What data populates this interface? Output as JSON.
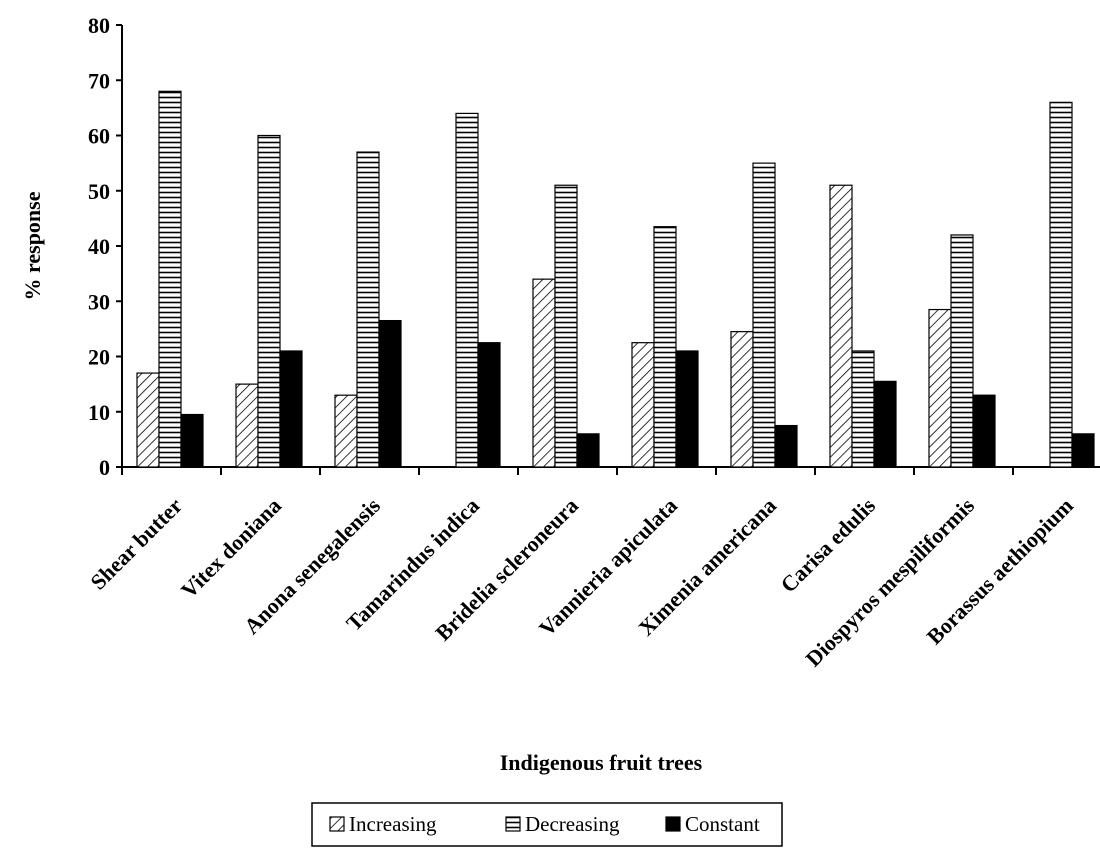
{
  "chart_data": {
    "type": "bar",
    "title": "",
    "xlabel": "Indigenous fruit trees",
    "ylabel": "% response",
    "ylim": [
      0,
      80
    ],
    "yticks": [
      0,
      10,
      20,
      30,
      40,
      50,
      60,
      70,
      80
    ],
    "categories": [
      "Shear butter",
      "Vitex doniana",
      "Anona senegalensis",
      "Tamarindus indica",
      "Bridelia scleroneura",
      "Vannieria apiculata",
      "Ximenia americana",
      "Carisa edulis",
      "Diospyros mespiliformis",
      "Borassus aethiopium"
    ],
    "series": [
      {
        "name": "Increasing",
        "pattern": "diagonal-hatch",
        "values": [
          17,
          15,
          13,
          0,
          34,
          22.5,
          24.5,
          51,
          28.5,
          0
        ]
      },
      {
        "name": "Decreasing",
        "pattern": "horizontal-hatch",
        "values": [
          68,
          60,
          57,
          64,
          51,
          43.5,
          55,
          21,
          42,
          66
        ]
      },
      {
        "name": "Constant",
        "pattern": "solid-black",
        "values": [
          9.5,
          21,
          26.5,
          22.5,
          6,
          21,
          7.5,
          15.5,
          13,
          6
        ]
      }
    ],
    "grid": false,
    "legend_position": "bottom-center",
    "colors": {
      "axis": "#000000",
      "constant_fill": "#000000",
      "hatch_stroke": "#000000",
      "background": "#ffffff"
    }
  }
}
